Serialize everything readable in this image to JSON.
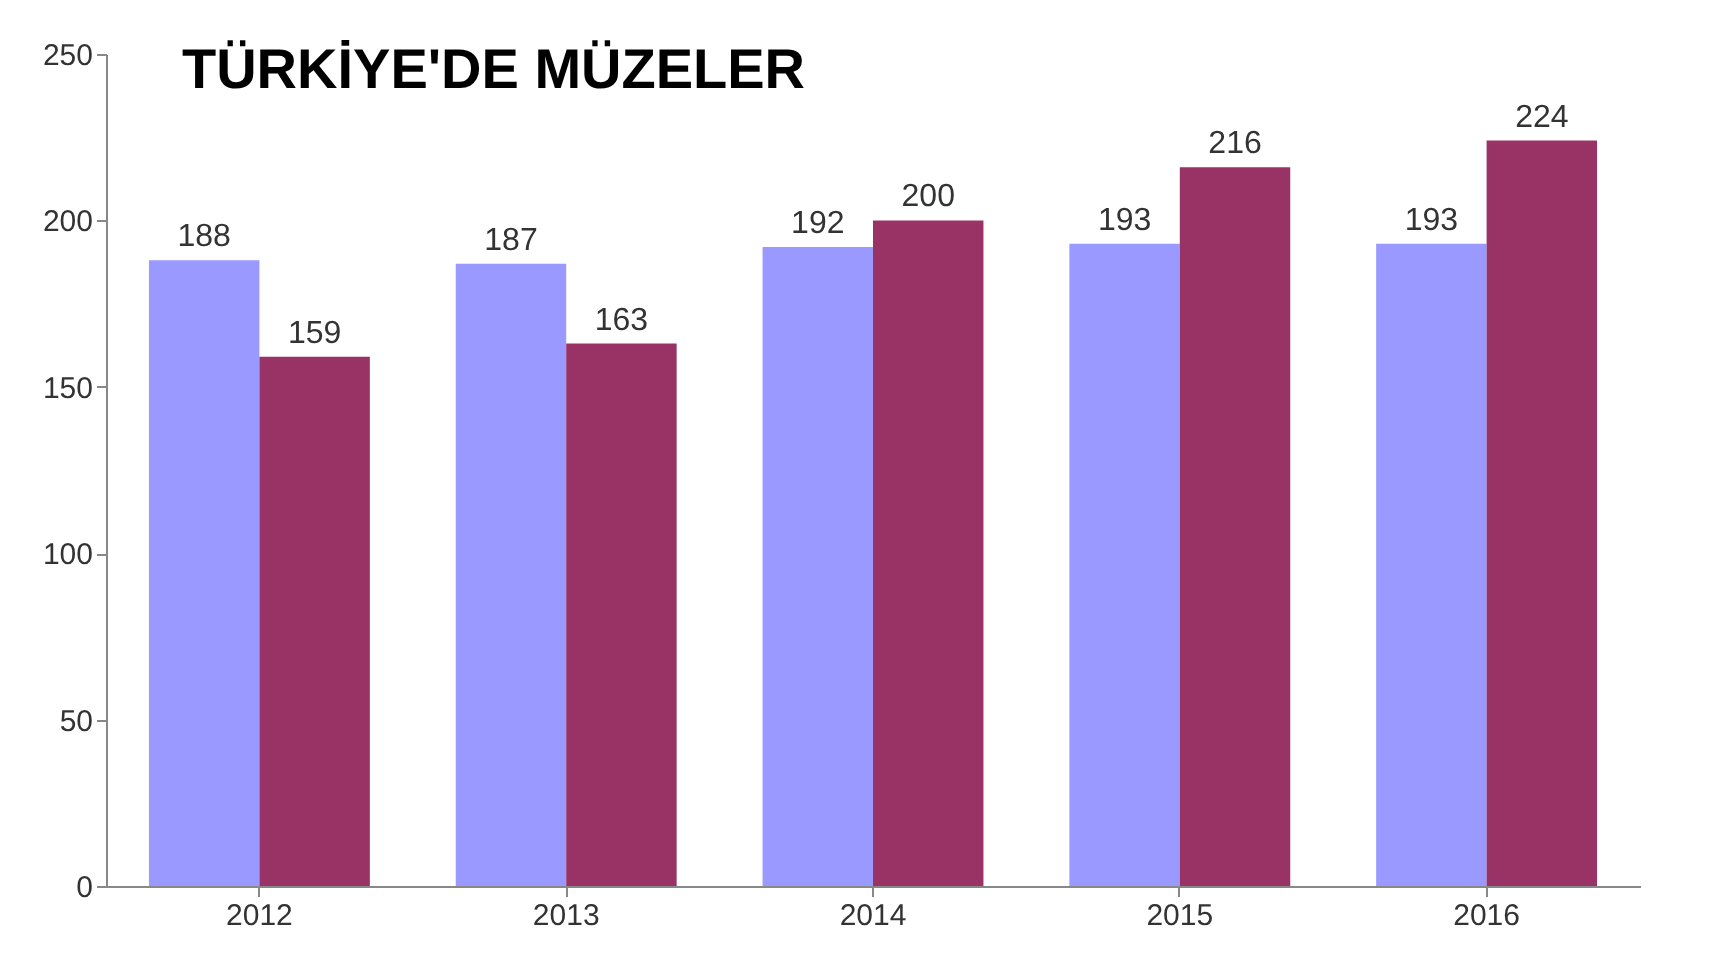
{
  "chart_data": {
    "type": "bar",
    "title": "TÜRKİYE'DE MÜZELER",
    "categories": [
      "2012",
      "2013",
      "2014",
      "2015",
      "2016"
    ],
    "series": [
      {
        "color": "#9999ff",
        "values": [
          188,
          187,
          192,
          193,
          193
        ]
      },
      {
        "color": "#993366",
        "values": [
          159,
          163,
          200,
          216,
          224
        ]
      }
    ],
    "ylim": [
      0,
      250
    ],
    "yticks": [
      0,
      50,
      100,
      150,
      200,
      250
    ],
    "grid": false,
    "data_labels": true,
    "legend": false
  }
}
